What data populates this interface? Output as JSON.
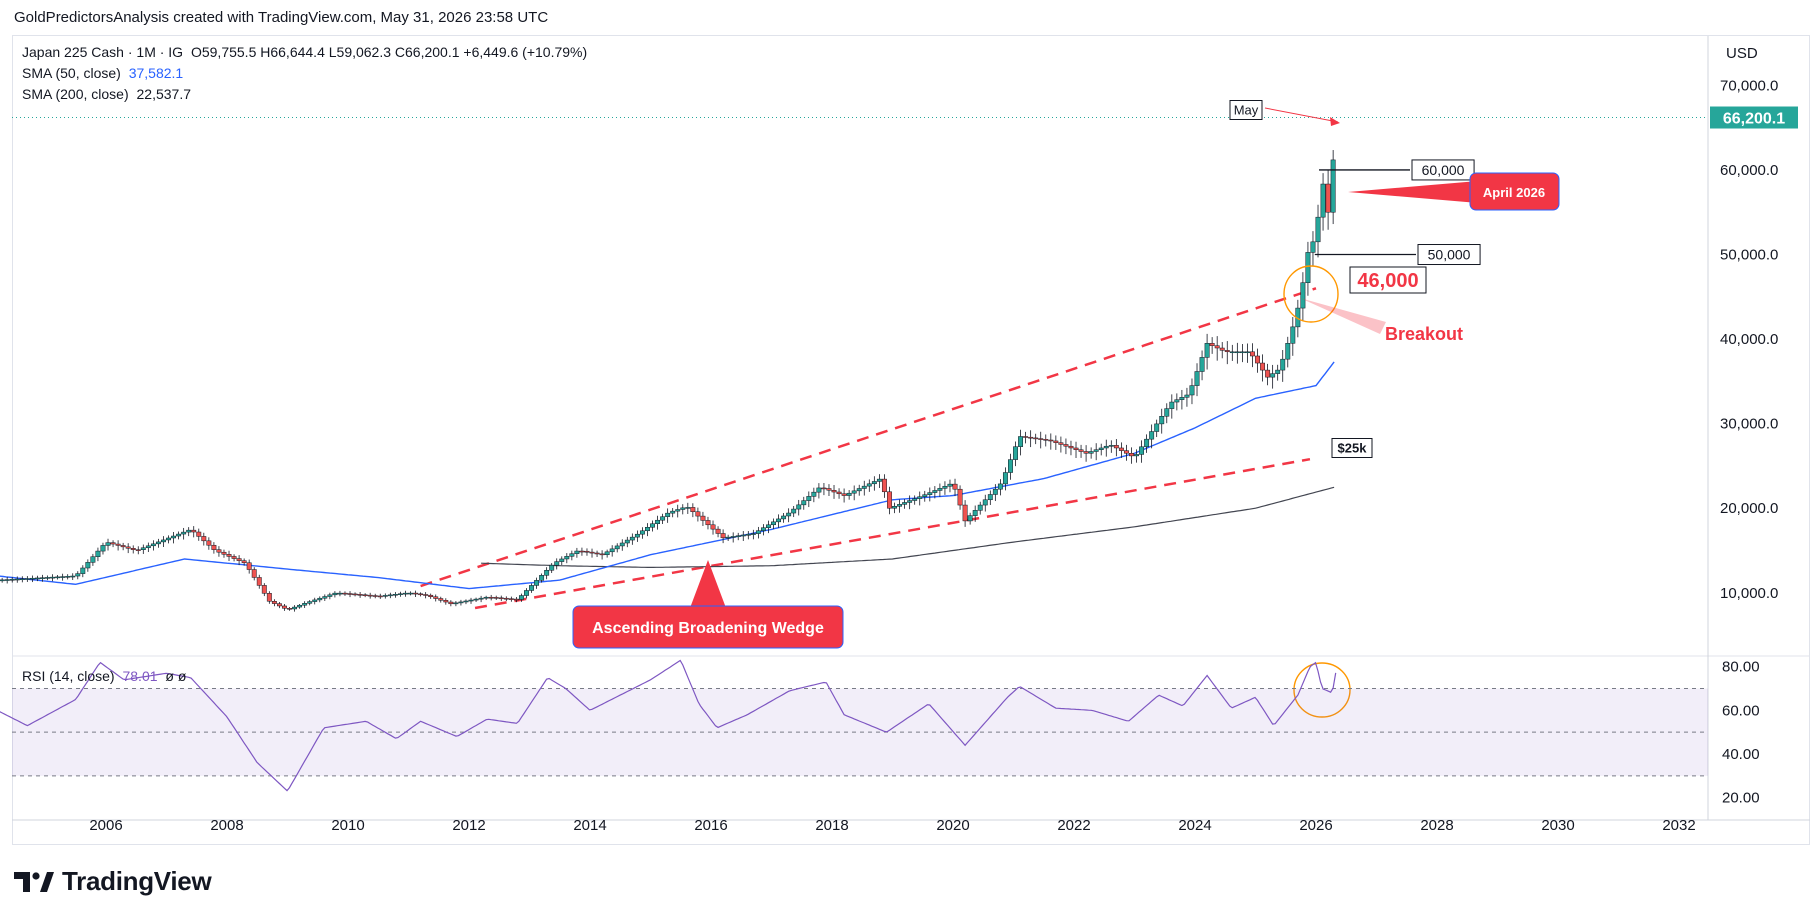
{
  "header": {
    "text": "GoldPredictorsAnalysis created with TradingView.com, May 31, 2026 23:58 UTC"
  },
  "legend": {
    "instrument": "Japan 225 Cash · 1M · IG",
    "ohlc": "O59,755.5  H66,644.4  L59,062.3  C66,200.1  +6,449.6 (+10.79%)",
    "sma50_label": "SMA (50, close)",
    "sma50_value": "37,582.1",
    "sma200_label": "SMA (200, close)",
    "sma200_value": "22,537.7",
    "rsi_label": "RSI (14, close)",
    "rsi_value": "78.01",
    "rsi_extra": "ø  ø"
  },
  "currency": "USD",
  "price_badge": "66,200.1",
  "annotations": {
    "may": "May",
    "april": "April 2026",
    "level_60k": "60,000",
    "level_50k": "50,000",
    "level_46k": "46,000",
    "breakout": "Breakout",
    "level_25k": "$25k",
    "pattern": "Ascending Broadening Wedge"
  },
  "brand": {
    "name": "TradingView"
  },
  "colors": {
    "up": "#26a69a",
    "down": "#ef5350",
    "sma50": "#2962ff",
    "sma200": "#434651",
    "rsi": "#7e57c2",
    "annotation_red": "#f23645",
    "highlight_orange": "#ff9800"
  },
  "chart_data": {
    "type": "candlestick",
    "interval": "1M",
    "x_ticks": [
      "2006",
      "2008",
      "2010",
      "2012",
      "2014",
      "2016",
      "2018",
      "2020",
      "2022",
      "2024",
      "2026",
      "2028",
      "2030",
      "2032"
    ],
    "price_ticks": [
      "10,000.0",
      "20,000.0",
      "30,000.0",
      "40,000.0",
      "50,000.0",
      "60,000.0",
      "70,000.0"
    ],
    "rsi_ticks": [
      "20.00",
      "40.00",
      "60.00",
      "80.00"
    ],
    "ylim": [
      3000,
      73000
    ],
    "rsi_ylim": [
      18,
      84
    ],
    "last_close": 66200.1,
    "close_anchors": [
      [
        2004.2,
        11500
      ],
      [
        2005.5,
        12000
      ],
      [
        2006.0,
        16000
      ],
      [
        2006.5,
        15000
      ],
      [
        2007.4,
        17500
      ],
      [
        2007.8,
        15000
      ],
      [
        2008.3,
        13500
      ],
      [
        2008.7,
        9000
      ],
      [
        2009.0,
        8000
      ],
      [
        2009.3,
        8800
      ],
      [
        2009.8,
        10000
      ],
      [
        2010.5,
        9600
      ],
      [
        2011.0,
        10000
      ],
      [
        2011.3,
        9700
      ],
      [
        2011.7,
        8700
      ],
      [
        2012.3,
        9500
      ],
      [
        2012.8,
        9200
      ],
      [
        2013.4,
        13500
      ],
      [
        2013.8,
        15000
      ],
      [
        2014.2,
        14500
      ],
      [
        2014.8,
        17000
      ],
      [
        2015.3,
        19500
      ],
      [
        2015.6,
        20200
      ],
      [
        2016.2,
        16500
      ],
      [
        2016.7,
        17000
      ],
      [
        2017.3,
        19500
      ],
      [
        2017.8,
        22500
      ],
      [
        2018.2,
        21500
      ],
      [
        2018.8,
        23500
      ],
      [
        2018.95,
        20000
      ],
      [
        2019.5,
        21500
      ],
      [
        2020.0,
        23000
      ],
      [
        2020.2,
        18500
      ],
      [
        2020.8,
        23000
      ],
      [
        2021.1,
        28500
      ],
      [
        2021.6,
        28000
      ],
      [
        2022.2,
        26500
      ],
      [
        2022.6,
        27500
      ],
      [
        2023.0,
        26000
      ],
      [
        2023.6,
        32500
      ],
      [
        2023.9,
        33500
      ],
      [
        2024.2,
        39500
      ],
      [
        2024.5,
        38500
      ],
      [
        2024.9,
        38500
      ],
      [
        2025.2,
        35500
      ],
      [
        2025.4,
        36500
      ],
      [
        2025.6,
        41000
      ],
      [
        2025.75,
        45000
      ],
      [
        2025.85,
        50000
      ],
      [
        2025.95,
        51500
      ],
      [
        2026.05,
        55000
      ],
      [
        2026.12,
        58500
      ],
      [
        2026.2,
        55000
      ],
      [
        2026.27,
        59755.5
      ],
      [
        2026.33,
        66200.1
      ]
    ],
    "sma50_anchors": [
      [
        2004.2,
        12000
      ],
      [
        2005.5,
        11000
      ],
      [
        2007.3,
        14000
      ],
      [
        2009.0,
        12800
      ],
      [
        2010.5,
        11800
      ],
      [
        2012.0,
        10500
      ],
      [
        2013.5,
        11500
      ],
      [
        2015.0,
        14500
      ],
      [
        2017.0,
        17500
      ],
      [
        2019.0,
        21000
      ],
      [
        2020.0,
        21500
      ],
      [
        2021.5,
        23500
      ],
      [
        2023.0,
        26500
      ],
      [
        2024.0,
        29500
      ],
      [
        2025.0,
        33000
      ],
      [
        2026.0,
        34500
      ],
      [
        2026.33,
        37582.1
      ]
    ],
    "sma200_anchors": [
      [
        2012.2,
        13500
      ],
      [
        2013.5,
        13200
      ],
      [
        2015.0,
        13000
      ],
      [
        2017.0,
        13200
      ],
      [
        2019.0,
        14000
      ],
      [
        2021.0,
        16000
      ],
      [
        2023.0,
        17800
      ],
      [
        2025.0,
        20000
      ],
      [
        2026.33,
        22537.7
      ]
    ],
    "rsi_anchors": [
      [
        2004.2,
        60
      ],
      [
        2004.7,
        53
      ],
      [
        2005.5,
        65
      ],
      [
        2005.9,
        82
      ],
      [
        2006.3,
        74
      ],
      [
        2007.0,
        77
      ],
      [
        2007.4,
        75
      ],
      [
        2008.0,
        57
      ],
      [
        2008.5,
        36
      ],
      [
        2009.0,
        23
      ],
      [
        2009.6,
        52
      ],
      [
        2010.3,
        55
      ],
      [
        2010.8,
        47
      ],
      [
        2011.2,
        55
      ],
      [
        2011.8,
        48
      ],
      [
        2012.3,
        56
      ],
      [
        2012.8,
        54
      ],
      [
        2013.3,
        75
      ],
      [
        2013.6,
        70
      ],
      [
        2014.0,
        60
      ],
      [
        2014.5,
        67
      ],
      [
        2015.0,
        74
      ],
      [
        2015.5,
        83
      ],
      [
        2015.8,
        63
      ],
      [
        2016.1,
        52
      ],
      [
        2016.6,
        58
      ],
      [
        2017.3,
        69
      ],
      [
        2017.9,
        73
      ],
      [
        2018.2,
        58
      ],
      [
        2018.9,
        50
      ],
      [
        2019.6,
        63
      ],
      [
        2020.2,
        44
      ],
      [
        2020.9,
        66
      ],
      [
        2021.1,
        71
      ],
      [
        2021.7,
        61
      ],
      [
        2022.3,
        60
      ],
      [
        2022.9,
        55
      ],
      [
        2023.4,
        67
      ],
      [
        2023.8,
        62
      ],
      [
        2024.2,
        76
      ],
      [
        2024.6,
        61
      ],
      [
        2025.0,
        66
      ],
      [
        2025.3,
        53
      ],
      [
        2025.7,
        67
      ],
      [
        2025.9,
        80
      ],
      [
        2026.0,
        82
      ],
      [
        2026.1,
        70
      ],
      [
        2026.27,
        68
      ],
      [
        2026.33,
        78
      ]
    ],
    "wedge_upper": [
      [
        2011.2,
        10800
      ],
      [
        2026.0,
        46000
      ]
    ],
    "wedge_lower": [
      [
        2012.1,
        8200
      ],
      [
        2025.9,
        25800
      ]
    ],
    "horizontal_levels": [
      60000,
      50000
    ]
  }
}
